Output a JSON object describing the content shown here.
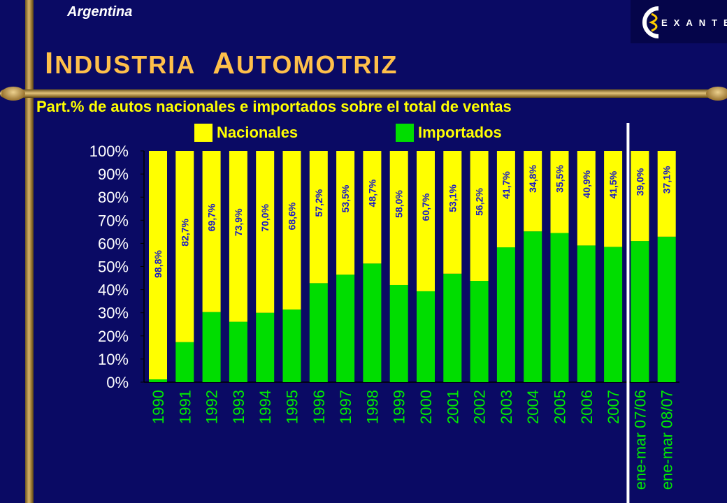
{
  "header": {
    "country": "Argentina",
    "title_first_initial": "I",
    "title_first_rest": "NDUSTRIA",
    "title_second_initial": "A",
    "title_second_rest": "UTOMOTRIZ",
    "logo_text": "EXANTE"
  },
  "colors": {
    "background": "#0a0a64",
    "nacionales": "#ffff00",
    "importados": "#00dd00",
    "label": "#1818c8",
    "axis_text": "#ffffff",
    "xtick_text": "#00ee00",
    "title": "#ffc04a"
  },
  "chart_data": {
    "type": "bar",
    "stacked": true,
    "title": "Part.% de autos nacionales e importados sobre el total de ventas",
    "xlabel": "",
    "ylabel": "",
    "ylim": [
      0,
      100
    ],
    "yticks": [
      "0%",
      "10%",
      "20%",
      "30%",
      "40%",
      "50%",
      "60%",
      "70%",
      "80%",
      "90%",
      "100%"
    ],
    "categories": [
      "1990",
      "1991",
      "1992",
      "1993",
      "1994",
      "1995",
      "1996",
      "1997",
      "1998",
      "1999",
      "2000",
      "2001",
      "2002",
      "2003",
      "2004",
      "2005",
      "2006",
      "2007",
      "ene-mar 07/06",
      "ene-mar 08/07"
    ],
    "legend_position": "top",
    "grid": false,
    "series": [
      {
        "name": "Nacionales",
        "values": [
          98.8,
          82.7,
          69.7,
          73.9,
          70.0,
          68.6,
          57.2,
          53.5,
          48.7,
          58.0,
          60.7,
          53.1,
          56.2,
          41.7,
          34.8,
          35.5,
          40.9,
          41.5,
          39.0,
          37.1
        ],
        "labels": [
          "98,8%",
          "82,7%",
          "69,7%",
          "73,9%",
          "70,0%",
          "68,6%",
          "57,2%",
          "53,5%",
          "48,7%",
          "58,0%",
          "60,7%",
          "53,1%",
          "56,2%",
          "41,7%",
          "34,8%",
          "35,5%",
          "40,9%",
          "41,5%",
          "39,0%",
          "37,1%"
        ]
      },
      {
        "name": "Importados",
        "values": [
          1.2,
          17.3,
          30.3,
          26.1,
          30.0,
          31.4,
          42.8,
          46.5,
          51.3,
          42.0,
          39.3,
          46.9,
          43.8,
          58.3,
          65.2,
          64.5,
          59.1,
          58.5,
          61.0,
          62.9
        ]
      }
    ],
    "separator_after_index": 17
  }
}
